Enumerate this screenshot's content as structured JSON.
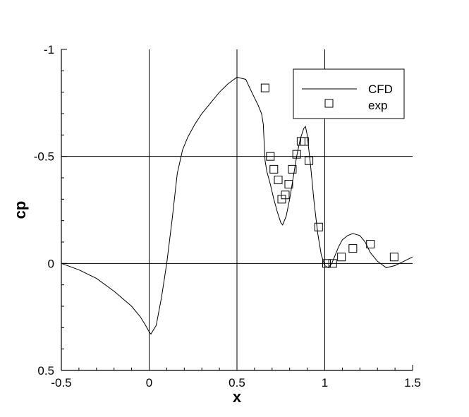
{
  "chart_data": {
    "type": "line",
    "title": "",
    "xlabel": "x",
    "ylabel": "cp",
    "xlim": [
      -0.5,
      1.5
    ],
    "ylim": [
      0.5,
      -1
    ],
    "y_axis_inverted": true,
    "grid": true,
    "legend_placement": "top-right",
    "x_ticks": [
      "-0.5",
      "0",
      "0.5",
      "1",
      "1.5"
    ],
    "y_ticks": [
      "-1",
      "-0.5",
      "0",
      "0.5"
    ],
    "series": [
      {
        "name": "CFD",
        "style": "line",
        "color": "#000000",
        "x": [
          -0.5,
          -0.4,
          -0.3,
          -0.2,
          -0.1,
          -0.05,
          -0.02,
          0.0,
          0.01,
          0.04,
          0.07,
          0.1,
          0.13,
          0.16,
          0.19,
          0.22,
          0.26,
          0.3,
          0.35,
          0.4,
          0.45,
          0.5,
          0.55,
          0.59,
          0.62,
          0.64,
          0.65,
          0.655,
          0.66,
          0.67,
          0.69,
          0.71,
          0.73,
          0.75,
          0.76,
          0.78,
          0.8,
          0.82,
          0.84,
          0.86,
          0.88,
          0.89,
          0.9,
          0.92,
          0.94,
          0.96,
          0.98,
          1.0,
          1.02,
          1.04,
          1.06,
          1.08,
          1.1,
          1.13,
          1.16,
          1.2,
          1.23,
          1.26,
          1.3,
          1.35,
          1.4,
          1.45,
          1.5
        ],
        "y": [
          0.0,
          0.03,
          0.07,
          0.13,
          0.2,
          0.25,
          0.29,
          0.32,
          0.33,
          0.29,
          0.16,
          0.0,
          -0.2,
          -0.42,
          -0.53,
          -0.59,
          -0.65,
          -0.7,
          -0.75,
          -0.8,
          -0.84,
          -0.87,
          -0.86,
          -0.79,
          -0.74,
          -0.7,
          -0.65,
          -0.56,
          -0.48,
          -0.43,
          -0.37,
          -0.3,
          -0.24,
          -0.19,
          -0.18,
          -0.22,
          -0.3,
          -0.4,
          -0.5,
          -0.58,
          -0.63,
          -0.64,
          -0.6,
          -0.45,
          -0.28,
          -0.14,
          -0.04,
          0.01,
          0.02,
          0.0,
          -0.04,
          -0.08,
          -0.11,
          -0.13,
          -0.14,
          -0.13,
          -0.1,
          -0.05,
          -0.01,
          0.02,
          0.01,
          -0.01,
          -0.03
        ]
      },
      {
        "name": "exp",
        "style": "markers",
        "marker": "open-square",
        "color": "#000000",
        "x": [
          0.66,
          0.69,
          0.71,
          0.735,
          0.755,
          0.775,
          0.795,
          0.815,
          0.84,
          0.865,
          0.885,
          0.91,
          0.965,
          1.01,
          1.045,
          1.095,
          1.16,
          1.26,
          1.395
        ],
        "y": [
          -0.82,
          -0.5,
          -0.44,
          -0.39,
          -0.3,
          -0.32,
          -0.37,
          -0.44,
          -0.51,
          -0.57,
          -0.57,
          -0.48,
          -0.17,
          0.0,
          0.0,
          -0.03,
          -0.07,
          -0.09,
          -0.03
        ]
      }
    ]
  }
}
